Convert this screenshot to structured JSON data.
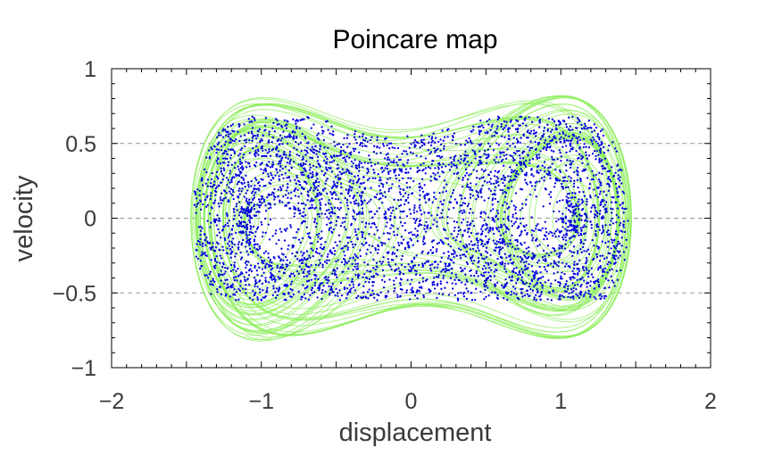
{
  "chart_data": {
    "type": "scatter",
    "title": "Poincare map",
    "xlabel": "displacement",
    "ylabel": "velocity",
    "xlim": [
      -2,
      2
    ],
    "ylim": [
      -1,
      1
    ],
    "xticks": [
      -2,
      -1,
      0,
      1,
      2
    ],
    "xtick_labels": [
      "−2",
      "−1",
      "0",
      "1",
      "2"
    ],
    "yticks": [
      -1,
      -0.5,
      0,
      0.5,
      1
    ],
    "ytick_labels": [
      "−1",
      "−0.5",
      "0",
      "0.5",
      "1"
    ],
    "grid": {
      "y_dashed": [
        -0.5,
        0,
        0.5
      ]
    },
    "series": [
      {
        "kind": "trajectory",
        "color": "#90ee60",
        "description": "continuous phase-space trajectory of a driven double-well (Duffing) oscillator",
        "x_range": [
          -1.5,
          1.5
        ],
        "y_range": [
          -0.75,
          0.7
        ]
      },
      {
        "kind": "poincare-points",
        "color": "#0000dd",
        "description": "strange-attractor Poincare section points",
        "x_range": [
          -1.42,
          1.5
        ],
        "y_range": [
          -0.52,
          0.68
        ],
        "sample_points": [
          [
            -1.0,
            0.68
          ],
          [
            -0.9,
            0.62
          ],
          [
            -0.4,
            0.64
          ],
          [
            -0.2,
            0.62
          ],
          [
            0.3,
            0.6
          ],
          [
            0.65,
            0.66
          ],
          [
            -1.3,
            0.2
          ],
          [
            -1.35,
            0.0
          ],
          [
            -1.3,
            -0.2
          ],
          [
            -1.1,
            -0.4
          ],
          [
            -0.8,
            -0.5
          ],
          [
            -0.5,
            -0.3
          ],
          [
            -0.9,
            0.1
          ],
          [
            -0.7,
            0.2
          ],
          [
            -0.4,
            0.3
          ],
          [
            -0.1,
            0.35
          ],
          [
            0.2,
            0.3
          ],
          [
            0.5,
            0.2
          ],
          [
            0.9,
            0.55
          ],
          [
            1.2,
            0.45
          ],
          [
            1.4,
            0.2
          ],
          [
            1.45,
            0.0
          ],
          [
            1.35,
            -0.25
          ],
          [
            1.1,
            -0.45
          ],
          [
            0.8,
            -0.3
          ],
          [
            0.7,
            0.0
          ],
          [
            0.9,
            0.25
          ],
          [
            1.1,
            0.1
          ],
          [
            1.0,
            -0.2
          ]
        ]
      }
    ]
  }
}
